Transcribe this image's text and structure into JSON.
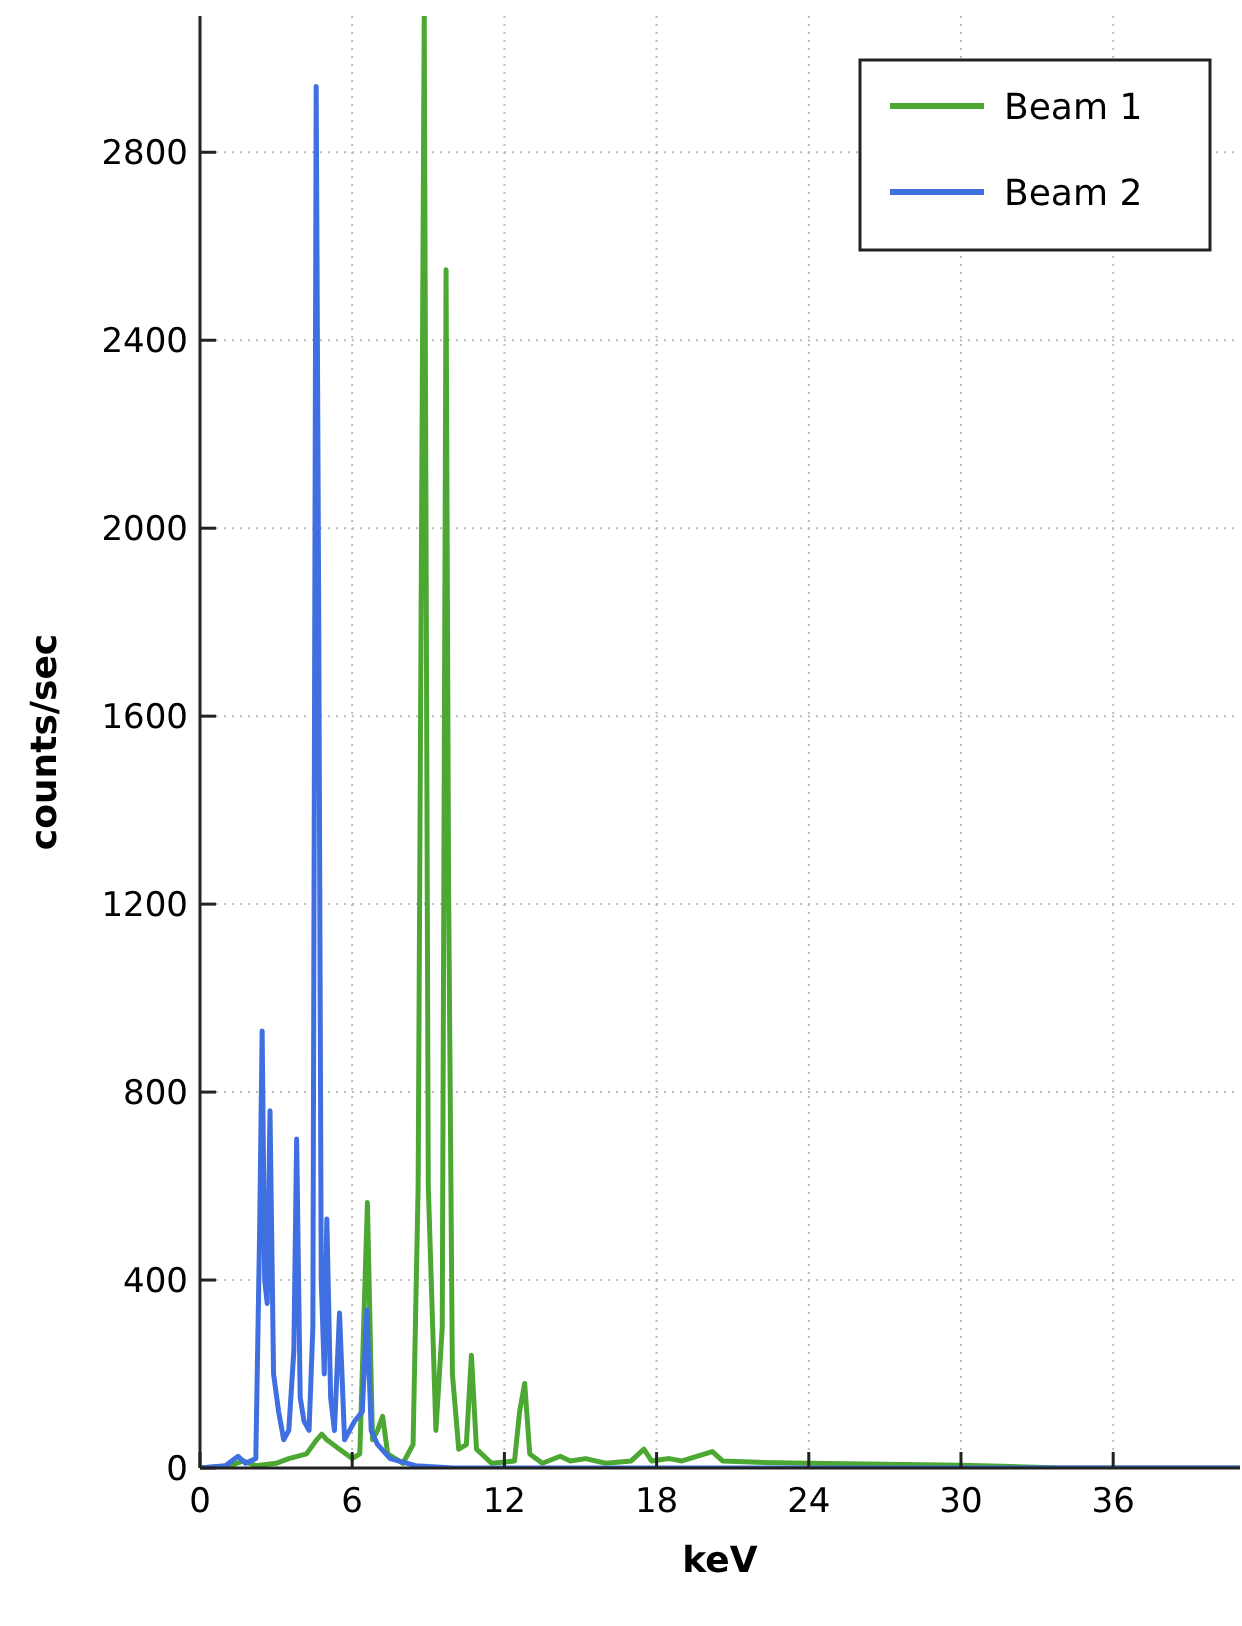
{
  "chart_data": {
    "type": "line",
    "xlabel": "keV",
    "ylabel": "counts/sec",
    "xlim": [
      0,
      41
    ],
    "ylim": [
      0,
      3090
    ],
    "xticks": [
      0,
      6,
      12,
      18,
      24,
      30,
      36
    ],
    "yticks": [
      0,
      400,
      800,
      1200,
      1600,
      2000,
      2400,
      2800
    ],
    "grid": true,
    "legend": "top right",
    "marker": "none",
    "line_style": "solid",
    "series": [
      {
        "name": "Beam 1",
        "color": "#4ca832",
        "x": [
          0,
          1.2,
          1.7,
          2.2,
          3,
          3.5,
          4.2,
          4.6,
          4.8,
          5.0,
          5.5,
          6.0,
          6.3,
          6.6,
          6.8,
          7.0,
          7.2,
          7.4,
          8.0,
          8.4,
          8.6,
          8.84,
          9.0,
          9.3,
          9.55,
          9.7,
          9.8,
          9.95,
          10.2,
          10.5,
          10.7,
          10.9,
          11.5,
          12.4,
          12.6,
          12.8,
          13.0,
          13.5,
          14.2,
          14.6,
          15.2,
          16,
          17,
          17.5,
          17.8,
          18.5,
          19,
          20.2,
          20.6,
          22,
          24,
          27,
          30,
          32,
          34,
          41
        ],
        "values": [
          0,
          5,
          15,
          5,
          10,
          20,
          30,
          60,
          72,
          60,
          40,
          20,
          30,
          565,
          60,
          80,
          110,
          30,
          10,
          50,
          600,
          3090,
          600,
          80,
          300,
          2550,
          1240,
          200,
          40,
          50,
          240,
          40,
          10,
          15,
          120,
          180,
          30,
          10,
          25,
          15,
          20,
          10,
          15,
          40,
          15,
          20,
          15,
          35,
          15,
          12,
          10,
          8,
          6,
          3,
          0,
          0
        ]
      },
      {
        "name": "Beam 2",
        "color": "#3f6fe0",
        "x": [
          0,
          1,
          1.5,
          1.8,
          2.2,
          2.35,
          2.45,
          2.55,
          2.65,
          2.76,
          2.9,
          3.1,
          3.3,
          3.5,
          3.7,
          3.81,
          3.95,
          4.1,
          4.3,
          4.45,
          4.58,
          4.68,
          4.78,
          4.9,
          5.0,
          5.15,
          5.3,
          5.5,
          5.7,
          5.9,
          6.1,
          6.4,
          6.58,
          6.75,
          7.0,
          7.5,
          8.5,
          10,
          41
        ],
        "values": [
          0,
          5,
          25,
          10,
          20,
          500,
          930,
          400,
          350,
          760,
          200,
          120,
          60,
          80,
          250,
          700,
          150,
          100,
          80,
          300,
          2940,
          1820,
          400,
          200,
          530,
          150,
          80,
          330,
          60,
          80,
          100,
          120,
          336,
          80,
          50,
          20,
          5,
          0,
          0
        ]
      }
    ]
  }
}
